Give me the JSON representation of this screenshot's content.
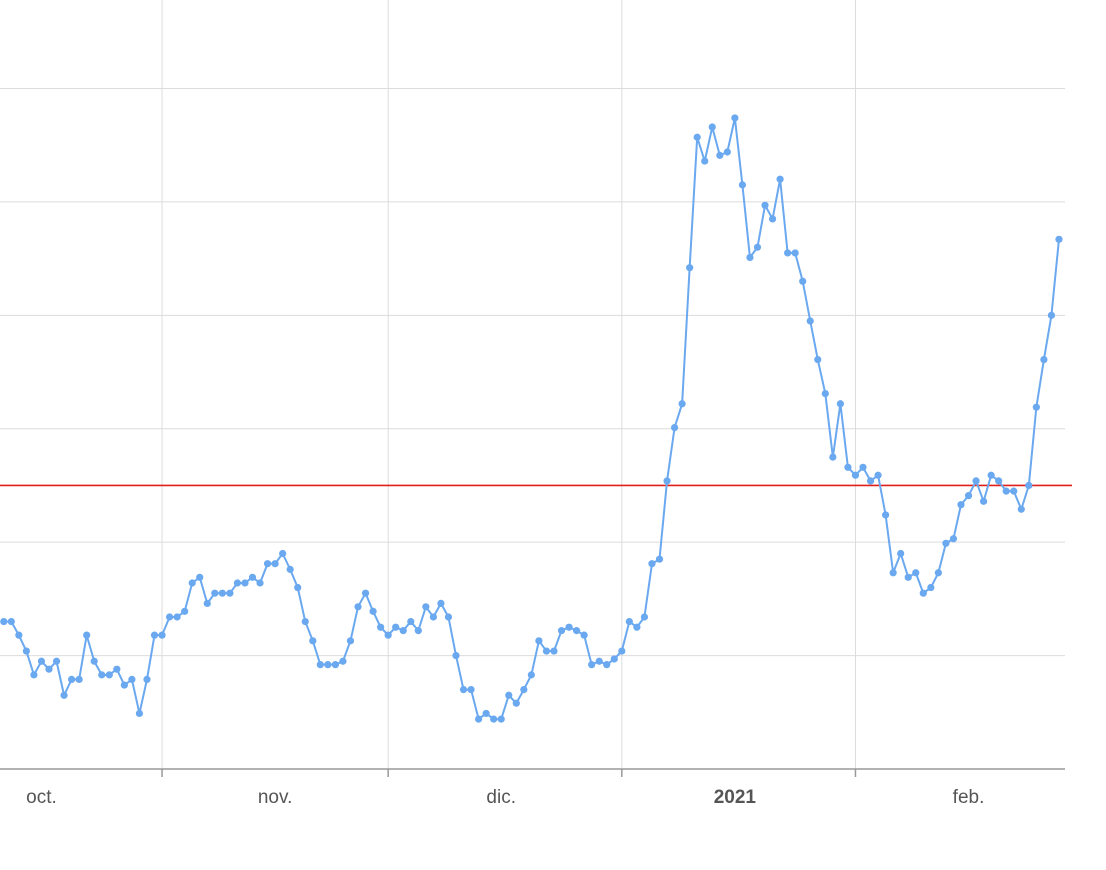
{
  "chart_data": {
    "type": "line",
    "x": [
      11,
      12,
      13,
      14,
      15,
      16,
      17,
      18,
      19,
      20,
      21,
      22,
      23,
      24,
      25,
      26,
      27,
      28,
      29,
      30,
      31,
      32,
      33,
      34,
      35,
      36,
      37,
      38,
      39,
      40,
      41,
      42,
      43,
      44,
      45,
      46,
      47,
      48,
      49,
      50,
      51,
      52,
      53,
      54,
      55,
      56,
      57,
      58,
      59,
      60,
      61,
      62,
      63,
      64,
      65,
      66,
      67,
      68,
      69,
      70,
      71,
      72,
      73,
      74,
      75,
      76,
      77,
      78,
      79,
      80,
      81,
      82,
      83,
      84,
      85,
      86,
      87,
      88,
      89,
      90,
      91,
      92,
      93,
      94,
      95,
      96,
      97,
      98,
      99,
      100,
      101,
      102,
      103,
      104,
      105,
      106,
      107,
      108,
      109,
      110,
      111,
      112,
      113,
      114,
      115,
      116,
      117,
      118,
      119,
      120,
      121,
      122,
      123,
      124,
      125,
      126,
      127,
      128,
      129,
      130,
      131,
      132,
      133,
      134,
      135,
      136,
      137,
      138,
      139,
      140,
      141,
      142,
      143,
      144,
      145,
      146,
      147,
      148,
      149,
      150,
      151
    ],
    "series": [
      {
        "color": "#6aa8f0",
        "values": [
          1.3,
          1.3,
          1.18,
          1.04,
          0.83,
          0.95,
          0.88,
          0.95,
          0.65,
          0.79,
          0.79,
          1.18,
          0.95,
          0.83,
          0.83,
          0.88,
          0.74,
          0.79,
          0.49,
          0.79,
          1.18,
          1.18,
          1.34,
          1.34,
          1.39,
          1.64,
          1.69,
          1.46,
          1.55,
          1.55,
          1.55,
          1.64,
          1.64,
          1.69,
          1.64,
          1.81,
          1.81,
          1.9,
          1.76,
          1.6,
          1.3,
          1.13,
          0.92,
          0.92,
          0.92,
          0.95,
          1.13,
          1.43,
          1.55,
          1.39,
          1.25,
          1.18,
          1.25,
          1.22,
          1.3,
          1.22,
          1.43,
          1.34,
          1.46,
          1.34,
          1.0,
          0.7,
          0.7,
          0.44,
          0.49,
          0.44,
          0.44,
          0.65,
          0.58,
          0.7,
          0.83,
          1.13,
          1.04,
          1.04,
          1.22,
          1.25,
          1.22,
          1.18,
          0.92,
          0.95,
          0.92,
          0.97,
          1.04,
          1.3,
          1.25,
          1.34,
          1.81,
          1.85,
          2.54,
          3.01,
          3.22,
          4.42,
          5.57,
          5.36,
          5.66,
          5.41,
          5.44,
          5.74,
          5.15,
          4.51,
          4.6,
          4.97,
          4.85,
          5.2,
          4.55,
          4.55,
          4.3,
          3.95,
          3.61,
          3.31,
          2.75,
          3.22,
          2.66,
          2.59,
          2.66,
          2.54,
          2.59,
          2.24,
          1.73,
          1.9,
          1.69,
          1.73,
          1.55,
          1.6,
          1.73,
          1.99,
          2.03,
          2.33,
          2.41,
          2.54,
          2.36,
          2.59,
          2.54,
          2.45,
          2.45,
          2.29,
          2.5,
          3.19,
          3.61,
          4.0,
          4.67
        ]
      }
    ],
    "xlim": [
      10.5,
      151.8
    ],
    "ylim": [
      0,
      6.78
    ],
    "xticks": [
      32,
      62,
      93,
      124
    ],
    "xlabels": [
      {
        "value": 16,
        "label": "oct."
      },
      {
        "value": 47,
        "label": "nov."
      },
      {
        "value": 77,
        "label": "dic."
      },
      {
        "value": 108,
        "label": "2021"
      },
      {
        "value": 139,
        "label": "feb."
      }
    ],
    "ygrid": [
      1,
      2,
      3,
      4,
      5,
      6
    ],
    "reference_line": {
      "value": 2.5,
      "color": "#e0201b"
    },
    "grid": true
  }
}
